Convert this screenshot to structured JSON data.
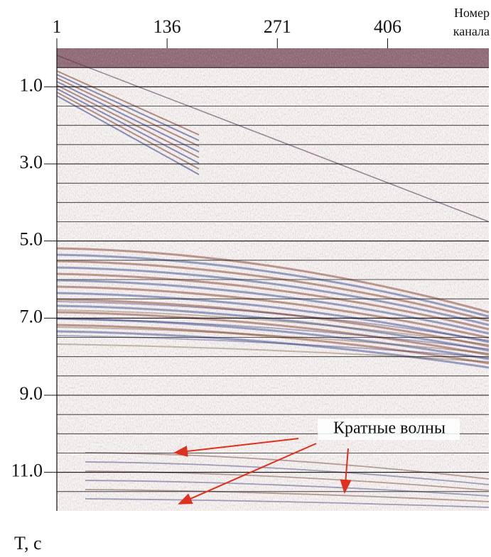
{
  "chart_data": {
    "type": "seismogram",
    "x_label": [
      "Номер",
      "канала"
    ],
    "y_label": "T, с",
    "xlim": [
      1,
      530
    ],
    "xticks": [
      1,
      136,
      271,
      406
    ],
    "ylim": [
      0,
      12
    ],
    "yticks": [
      {
        "value": 1,
        "label": "1.0"
      },
      {
        "value": 3,
        "label": "3.0"
      },
      {
        "value": 5,
        "label": "5.0"
      },
      {
        "value": 7,
        "label": "7.0"
      },
      {
        "value": 9,
        "label": "9.0"
      },
      {
        "value": 11,
        "label": "11.0"
      }
    ],
    "grid": true,
    "annotation": {
      "text": "Кратные волны",
      "color": "#e0301e"
    }
  }
}
